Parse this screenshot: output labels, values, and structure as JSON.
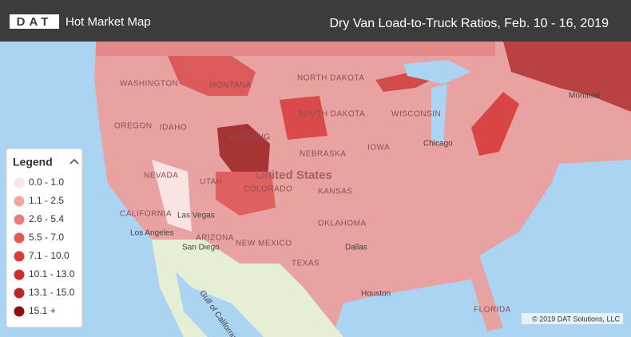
{
  "header": {
    "logo": "DAT",
    "title": "Hot Market Map",
    "subtitle": "Dry Van Load-to-Truck Ratios, Feb. 10 - 16, 2019"
  },
  "legend": {
    "title": "Legend",
    "items": [
      {
        "label": "0.0 - 1.0",
        "color": "#fbe4e4"
      },
      {
        "label": "1.1 - 2.5",
        "color": "#f2a3a3"
      },
      {
        "label": "2.6 - 5.4",
        "color": "#e67c7c"
      },
      {
        "label": "5.5 - 7.0",
        "color": "#e05858"
      },
      {
        "label": "7.1 - 10.0",
        "color": "#da3c3c"
      },
      {
        "label": "10.1 - 13.0",
        "color": "#cc2d2d"
      },
      {
        "label": "13.1 - 15.0",
        "color": "#b92626"
      },
      {
        "label": "15.1 +",
        "color": "#8c1212"
      }
    ]
  },
  "map": {
    "labels": [
      "WASHINGTON",
      "MONTANA",
      "NORTH DAKOTA",
      "SOUTH DAKOTA",
      "OREGON",
      "IDAHO",
      "WYOMING",
      "NEBRASKA",
      "NEVADA",
      "UTAH",
      "COLORADO",
      "KANSAS",
      "United States",
      "CALIFORNIA",
      "Las Vegas",
      "Los Angeles",
      "San Diego",
      "ARIZONA",
      "NEW MEXICO",
      "OKLAHOMA",
      "TEXAS",
      "Dallas",
      "Houston",
      "Chicago",
      "IOWA",
      "WISCONSIN",
      "FLORIDA",
      "Gulf of California",
      "Montreal"
    ]
  },
  "copyright": "© 2019 DAT Solutions, LLC"
}
